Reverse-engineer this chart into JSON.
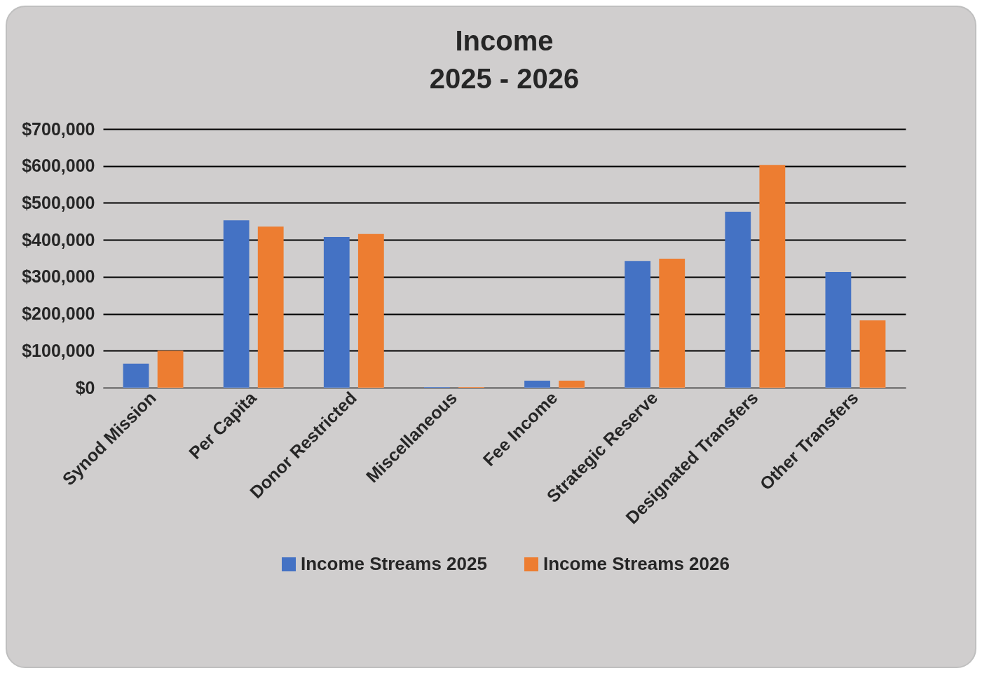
{
  "chart_data": {
    "type": "bar",
    "title": "Income",
    "subtitle": "2025 - 2026",
    "categories": [
      "Synod Mission",
      "Per Capita",
      "Donor Restricted",
      "Miscellaneous",
      "Fee Income",
      "Strategic Reserve",
      "Designated Transfers",
      "Other Transfers"
    ],
    "series": [
      {
        "name": "Income Streams 2025",
        "color": "#4472c4",
        "values": [
          65000,
          453000,
          408000,
          2000,
          19000,
          343000,
          476000,
          313000
        ]
      },
      {
        "name": "Income Streams 2026",
        "color": "#ed7d31",
        "values": [
          100000,
          436000,
          416000,
          2000,
          19000,
          349000,
          603000,
          182000
        ]
      }
    ],
    "ylim": [
      0,
      700000
    ],
    "yticks": [
      {
        "value": 0,
        "label": "$0"
      },
      {
        "value": 100000,
        "label": "$100,000"
      },
      {
        "value": 200000,
        "label": "$200,000"
      },
      {
        "value": 300000,
        "label": "$300,000"
      },
      {
        "value": 400000,
        "label": "$400,000"
      },
      {
        "value": 500000,
        "label": "$500,000"
      },
      {
        "value": 600000,
        "label": "$600,000"
      },
      {
        "value": 700000,
        "label": "$700,000"
      }
    ],
    "grid": "y",
    "legend": "bottom"
  }
}
